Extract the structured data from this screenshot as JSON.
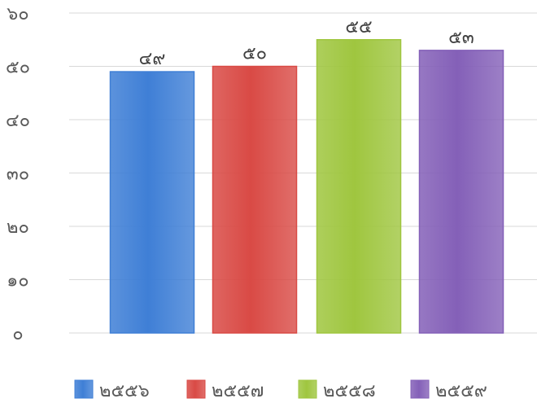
{
  "chart_data": {
    "type": "bar",
    "categories": [
      "๒๕๕๖",
      "๒๕๕๗",
      "๒๕๕๘",
      "๒๕๕๙"
    ],
    "values": [
      49,
      50,
      55,
      53
    ],
    "value_labels": [
      "๔๙",
      "๕๐",
      "๕๕",
      "๕๓"
    ],
    "ylim": [
      0,
      60
    ],
    "yticks": [
      0,
      10,
      20,
      30,
      40,
      50,
      60
    ],
    "ytick_labels": [
      "๐",
      "๑๐",
      "๒๐",
      "๓๐",
      "๔๐",
      "๕๐",
      "๖๐"
    ],
    "colors": [
      "#3f7fd6",
      "#d94a45",
      "#9fc63f",
      "#8460b8"
    ],
    "grid": true,
    "legend_position": "bottom",
    "title": "",
    "xlabel": "",
    "ylabel": ""
  }
}
